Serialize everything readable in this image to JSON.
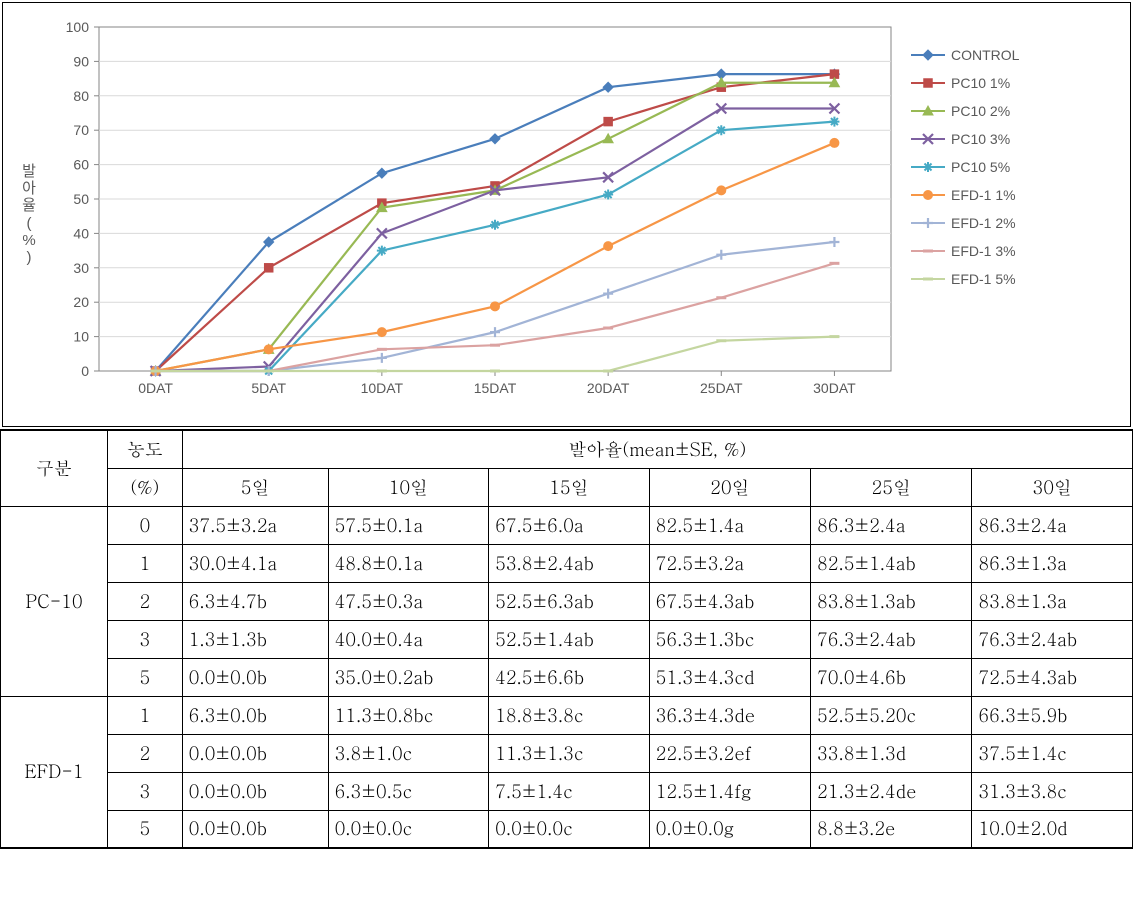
{
  "chart": {
    "type": "line",
    "background_color": "#ffffff",
    "plot_border_color": "#868686",
    "plot_border_width": 1,
    "grid_color": "#d9d9d9",
    "grid_width": 1,
    "axis_label_color": "#595959",
    "tick_font_size": 14,
    "x_categories": [
      "0DAT",
      "5DAT",
      "10DAT",
      "15DAT",
      "20DAT",
      "25DAT",
      "30DAT"
    ],
    "ylim": [
      0,
      100
    ],
    "ytick_step": 10,
    "y_axis_title_vertical": "발아율(%)",
    "y_axis_title_chars": [
      "발",
      "아",
      "율",
      "(",
      "%",
      ")"
    ],
    "y_axis_title_fontsize": 15,
    "line_width": 2.2,
    "marker_size": 8,
    "series": [
      {
        "name": "CONTROL",
        "color": "#4a7ebb",
        "marker": "diamond",
        "values": [
          0,
          37.5,
          57.5,
          67.5,
          82.5,
          86.3,
          86.3
        ]
      },
      {
        "name": "PC10 1%",
        "color": "#be4b48",
        "marker": "square",
        "values": [
          0,
          30.0,
          48.8,
          53.8,
          72.5,
          82.5,
          86.3
        ]
      },
      {
        "name": "PC10 2%",
        "color": "#98b954",
        "marker": "triangle",
        "values": [
          0,
          6.3,
          47.5,
          52.5,
          67.5,
          83.8,
          83.8
        ]
      },
      {
        "name": "PC10 3%",
        "color": "#7d60a0",
        "marker": "x",
        "values": [
          0,
          1.3,
          40.0,
          52.5,
          56.3,
          76.3,
          76.3
        ]
      },
      {
        "name": "PC10 5%",
        "color": "#46aac5",
        "marker": "star",
        "values": [
          0,
          0.0,
          35.0,
          42.5,
          51.3,
          70.0,
          72.5
        ]
      },
      {
        "name": "EFD-1 1%",
        "color": "#f79646",
        "marker": "circle",
        "values": [
          0,
          6.3,
          11.3,
          18.8,
          36.3,
          52.5,
          66.3
        ]
      },
      {
        "name": "EFD-1 2%",
        "color": "#a2b4d6",
        "marker": "plus",
        "values": [
          0,
          0.0,
          3.8,
          11.3,
          22.5,
          33.8,
          37.5
        ]
      },
      {
        "name": "EFD-1 3%",
        "color": "#dba2a1",
        "marker": "dash",
        "values": [
          0,
          0.0,
          6.3,
          7.5,
          12.5,
          21.3,
          31.3
        ]
      },
      {
        "name": "EFD-1 5%",
        "color": "#c4d6a0",
        "marker": "dash",
        "values": [
          0,
          0.0,
          0.0,
          0.0,
          0.0,
          8.8,
          10.0
        ]
      }
    ]
  },
  "table": {
    "header": {
      "col1": "구분",
      "col2_top": "농도",
      "col2_bot": "(%)",
      "merged_top": "발아율(mean±SE, %)",
      "day_cols": [
        "5일",
        "10일",
        "15일",
        "20일",
        "25일",
        "30일"
      ]
    },
    "groups": [
      {
        "name": "PC-10",
        "rows": [
          {
            "conc": "0",
            "cells": [
              "37.5±3.2a",
              "57.5±0.1a",
              "67.5±6.0a",
              "82.5±1.4a",
              "86.3±2.4a",
              "86.3±2.4a"
            ]
          },
          {
            "conc": "1",
            "cells": [
              "30.0±4.1a",
              "48.8±0.1a",
              "53.8±2.4ab",
              "72.5±3.2a",
              "82.5±1.4ab",
              "86.3±1.3a"
            ]
          },
          {
            "conc": "2",
            "cells": [
              "6.3±4.7b",
              "47.5±0.3a",
              "52.5±6.3ab",
              "67.5±4.3ab",
              "83.8±1.3ab",
              "83.8±1.3a"
            ]
          },
          {
            "conc": "3",
            "cells": [
              "1.3±1.3b",
              "40.0±0.4a",
              "52.5±1.4ab",
              "56.3±1.3bc",
              "76.3±2.4ab",
              "76.3±2.4ab"
            ]
          },
          {
            "conc": "5",
            "cells": [
              "0.0±0.0b",
              "35.0±0.2ab",
              "42.5±6.6b",
              "51.3±4.3cd",
              "70.0±4.6b",
              "72.5±4.3ab"
            ]
          }
        ]
      },
      {
        "name": "EFD-1",
        "rows": [
          {
            "conc": "1",
            "cells": [
              "6.3±0.0b",
              "11.3±0.8bc",
              "18.8±3.8c",
              "36.3±4.3de",
              "52.5±5.20c",
              "66.3±5.9b"
            ]
          },
          {
            "conc": "2",
            "cells": [
              "0.0±0.0b",
              "3.8±1.0c",
              "11.3±1.3c",
              "22.5±3.2ef",
              "33.8±1.3d",
              "37.5±1.4c"
            ]
          },
          {
            "conc": "3",
            "cells": [
              "0.0±0.0b",
              "6.3±0.5c",
              "7.5±1.4c",
              "12.5±1.4fg",
              "21.3±2.4de",
              "31.3±3.8c"
            ]
          },
          {
            "conc": "5",
            "cells": [
              "0.0±0.0b",
              "0.0±0.0c",
              "0.0±0.0c",
              "0.0±0.0g",
              "8.8±3.2e",
              "10.0±2.0d"
            ]
          }
        ]
      }
    ]
  }
}
